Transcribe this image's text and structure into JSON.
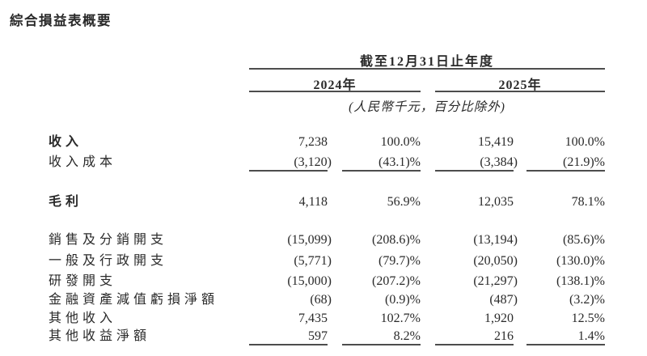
{
  "page": {
    "title": "綜合損益表概要"
  },
  "table": {
    "period_header": "截至12月31日止年度",
    "year_headers": [
      "2024年",
      "2025年"
    ],
    "unit_note": "(人民幣千元，百分比除外)",
    "rows": [
      {
        "label": "收入",
        "bold": true,
        "values": [
          "7,238",
          "100.0%",
          "15,419",
          "100.0%"
        ]
      },
      {
        "label": "收入成本",
        "bold": false,
        "values": [
          "(3,120)",
          "(43.1)%",
          "(3,384)",
          "(21.9)%"
        ],
        "rule_below": true
      },
      {
        "label": "毛利",
        "bold": true,
        "values": [
          "4,118",
          "56.9%",
          "12,035",
          "78.1%"
        ]
      },
      {
        "label": "銷售及分銷開支",
        "bold": false,
        "values": [
          "(15,099)",
          "(208.6)%",
          "(13,194)",
          "(85.6)%"
        ]
      },
      {
        "label": "一般及行政開支",
        "bold": false,
        "values": [
          "(5,771)",
          "(79.7)%",
          "(20,050)",
          "(130.0)%"
        ]
      },
      {
        "label": "研發開支",
        "bold": false,
        "values": [
          "(15,000)",
          "(207.2)%",
          "(21,297)",
          "(138.1)%"
        ]
      },
      {
        "label": "金融資產減值虧損淨額",
        "bold": false,
        "values": [
          "(68)",
          "(0.9)%",
          "(487)",
          "(3.2)%"
        ]
      },
      {
        "label": "其他收入",
        "bold": false,
        "values": [
          "7,435",
          "102.7%",
          "1,920",
          "12.5%"
        ]
      },
      {
        "label": "其他收益淨額",
        "bold": false,
        "values": [
          "597",
          "8.2%",
          "216",
          "1.4%"
        ],
        "rule_below": true
      }
    ]
  }
}
